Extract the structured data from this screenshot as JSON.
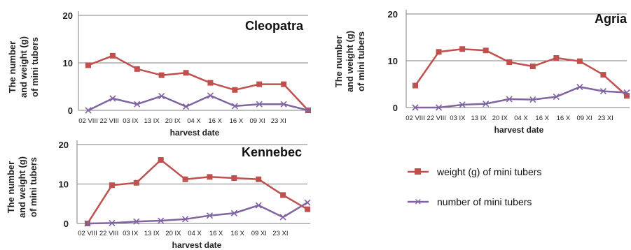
{
  "colors": {
    "weight": "#c0504d",
    "number": "#8064a2",
    "grid": "#7f7f7f",
    "axis": "#7f7f7f"
  },
  "legend": {
    "position": "lower-right",
    "items": [
      {
        "label": "weight (g) of mini tubers",
        "marker": "square",
        "color": "#c0504d"
      },
      {
        "label": "number of mini tubers",
        "marker": "x",
        "color": "#8064a2"
      }
    ]
  },
  "chart_data": [
    {
      "type": "line",
      "title": "Cleopatra",
      "xlabel": "harvest date",
      "ylabel": [
        "The number",
        "and weight (g)",
        "of mini tubers"
      ],
      "ylim": [
        0,
        20
      ],
      "yticks": [
        0,
        10,
        20
      ],
      "grid": true,
      "categories": [
        "02 VIII",
        "22 VIII",
        "03 IX",
        "13 IX",
        "20 IX",
        "04 X",
        "16 X",
        "16 X",
        "09 XI",
        "23 XI"
      ],
      "series": [
        {
          "name": "weight (g) of mini tubers",
          "values": [
            9.5,
            11.5,
            8.7,
            7.4,
            7.9,
            5.8,
            4.3,
            5.5,
            5.5,
            0
          ]
        },
        {
          "name": "number of mini tubers",
          "values": [
            0,
            2.5,
            1.3,
            3.0,
            0.8,
            3.1,
            0.9,
            1.3,
            1.3,
            0
          ]
        }
      ]
    },
    {
      "type": "line",
      "title": "Agria",
      "xlabel": "harvest date",
      "ylabel": [
        "The number",
        "and weight (g)",
        "of mini tubers"
      ],
      "ylim": [
        0,
        20
      ],
      "yticks": [
        0,
        10,
        20
      ],
      "grid": true,
      "categories": [
        "02 VIII",
        "22 VIII",
        "03 IX",
        "13 IX",
        "20 IX",
        "04 X",
        "16 X",
        "16 X",
        "09 XI",
        "23 XI"
      ],
      "series": [
        {
          "name": "weight (g) of mini tubers",
          "values": [
            4.7,
            11.9,
            12.5,
            12.2,
            9.7,
            8.8,
            10.6,
            9.9,
            7.0,
            2.5
          ]
        },
        {
          "name": "number of mini tubers",
          "values": [
            0,
            0,
            0.6,
            0.8,
            1.8,
            1.7,
            2.3,
            4.4,
            3.5,
            3.2
          ]
        }
      ]
    },
    {
      "type": "line",
      "title": "Kennebec",
      "xlabel": "harvest date",
      "ylabel": [
        "The number",
        "and weight (g)",
        "of mini tubers"
      ],
      "ylim": [
        0,
        20
      ],
      "yticks": [
        0,
        10,
        20
      ],
      "grid": true,
      "categories": [
        "02 VIII",
        "22 VIII",
        "03 IX",
        "13 IX",
        "20 IX",
        "04 X",
        "16 X",
        "16 X",
        "09 XI",
        "23 XI"
      ],
      "series": [
        {
          "name": "weight (g) of mini tubers",
          "values": [
            0,
            9.7,
            10.3,
            16.1,
            11.2,
            11.8,
            11.5,
            11.2,
            7.2,
            3.6
          ]
        },
        {
          "name": "number of mini tubers",
          "values": [
            0,
            0.1,
            0.5,
            0.7,
            1.1,
            2.0,
            2.6,
            4.6,
            1.6,
            5.3
          ]
        }
      ]
    }
  ]
}
